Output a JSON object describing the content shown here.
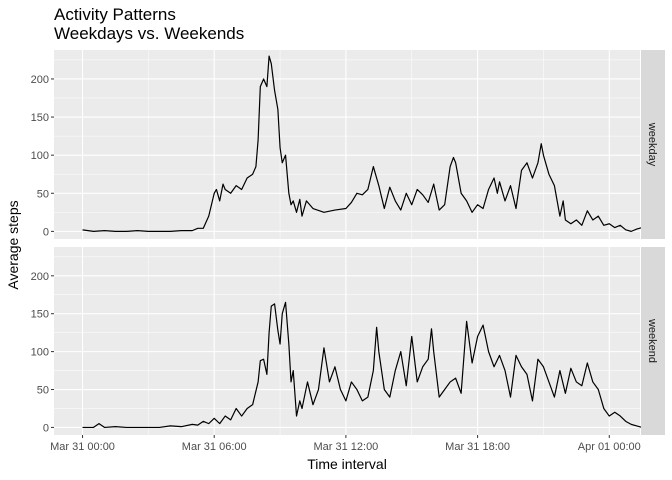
{
  "chart_data": {
    "type": "line",
    "title": "Activity Patterns",
    "subtitle": "Weekdays vs. Weekends",
    "xlabel": "Time interval",
    "ylabel": "Average steps",
    "ylim": [
      -10,
      238
    ],
    "y_ticks": [
      0,
      50,
      100,
      150,
      200
    ],
    "x_ticks": [
      "Mar 31 00:00",
      "Mar 31 06:00",
      "Mar 31 12:00",
      "Mar 31 18:00",
      "Apr 01 00:00"
    ],
    "x_tick_hours": [
      0,
      6,
      12,
      18,
      24
    ],
    "xlim_hours": [
      -1.3,
      25.4
    ],
    "x_unit": "hours since Mar 31 00:00",
    "grid": true,
    "facet": "rows",
    "panels": [
      {
        "name": "weekday",
        "points": [
          [
            0,
            2
          ],
          [
            0.5,
            0
          ],
          [
            1,
            1
          ],
          [
            1.5,
            0
          ],
          [
            2,
            0
          ],
          [
            2.5,
            1
          ],
          [
            3,
            0
          ],
          [
            3.5,
            0
          ],
          [
            4,
            0
          ],
          [
            4.5,
            1
          ],
          [
            5,
            1
          ],
          [
            5.25,
            4
          ],
          [
            5.5,
            4
          ],
          [
            5.75,
            20
          ],
          [
            6,
            50
          ],
          [
            6.1,
            55
          ],
          [
            6.25,
            40
          ],
          [
            6.4,
            62
          ],
          [
            6.5,
            55
          ],
          [
            6.75,
            50
          ],
          [
            7,
            60
          ],
          [
            7.25,
            55
          ],
          [
            7.5,
            70
          ],
          [
            7.75,
            75
          ],
          [
            7.9,
            85
          ],
          [
            8.0,
            120
          ],
          [
            8.1,
            190
          ],
          [
            8.25,
            200
          ],
          [
            8.4,
            190
          ],
          [
            8.5,
            230
          ],
          [
            8.6,
            220
          ],
          [
            8.75,
            185
          ],
          [
            8.9,
            160
          ],
          [
            9.0,
            110
          ],
          [
            9.1,
            90
          ],
          [
            9.25,
            100
          ],
          [
            9.4,
            50
          ],
          [
            9.5,
            35
          ],
          [
            9.6,
            40
          ],
          [
            9.75,
            25
          ],
          [
            9.9,
            42
          ],
          [
            10.0,
            20
          ],
          [
            10.2,
            40
          ],
          [
            10.5,
            30
          ],
          [
            11.0,
            25
          ],
          [
            11.5,
            28
          ],
          [
            12.0,
            30
          ],
          [
            12.25,
            38
          ],
          [
            12.5,
            50
          ],
          [
            12.75,
            48
          ],
          [
            13.0,
            55
          ],
          [
            13.25,
            85
          ],
          [
            13.4,
            70
          ],
          [
            13.5,
            60
          ],
          [
            13.75,
            30
          ],
          [
            14.0,
            58
          ],
          [
            14.25,
            40
          ],
          [
            14.5,
            28
          ],
          [
            14.75,
            50
          ],
          [
            15.0,
            35
          ],
          [
            15.25,
            55
          ],
          [
            15.5,
            48
          ],
          [
            15.75,
            38
          ],
          [
            16.0,
            62
          ],
          [
            16.25,
            28
          ],
          [
            16.5,
            35
          ],
          [
            16.75,
            85
          ],
          [
            16.9,
            97
          ],
          [
            17.0,
            90
          ],
          [
            17.25,
            50
          ],
          [
            17.5,
            40
          ],
          [
            17.75,
            25
          ],
          [
            18.0,
            35
          ],
          [
            18.25,
            30
          ],
          [
            18.5,
            55
          ],
          [
            18.75,
            70
          ],
          [
            18.9,
            50
          ],
          [
            19.0,
            65
          ],
          [
            19.25,
            40
          ],
          [
            19.5,
            60
          ],
          [
            19.75,
            30
          ],
          [
            20.0,
            80
          ],
          [
            20.25,
            90
          ],
          [
            20.5,
            70
          ],
          [
            20.75,
            90
          ],
          [
            20.9,
            115
          ],
          [
            21.0,
            100
          ],
          [
            21.25,
            75
          ],
          [
            21.5,
            60
          ],
          [
            21.75,
            20
          ],
          [
            21.9,
            40
          ],
          [
            22.0,
            15
          ],
          [
            22.25,
            10
          ],
          [
            22.5,
            15
          ],
          [
            22.75,
            8
          ],
          [
            23.0,
            27
          ],
          [
            23.25,
            15
          ],
          [
            23.5,
            20
          ],
          [
            23.75,
            8
          ],
          [
            24.0,
            10
          ],
          [
            24.25,
            5
          ],
          [
            24.5,
            8
          ],
          [
            24.75,
            2
          ],
          [
            25.0,
            0
          ],
          [
            25.25,
            3
          ],
          [
            25.5,
            5
          ],
          [
            25.75,
            2
          ],
          [
            26.0,
            0
          ],
          [
            26.25,
            0
          ]
        ]
      },
      {
        "name": "weekend",
        "points": [
          [
            0,
            0
          ],
          [
            0.5,
            0
          ],
          [
            0.75,
            5
          ],
          [
            1,
            0
          ],
          [
            1.5,
            1
          ],
          [
            2,
            0
          ],
          [
            2.5,
            0
          ],
          [
            3,
            0
          ],
          [
            3.5,
            0
          ],
          [
            4,
            2
          ],
          [
            4.5,
            1
          ],
          [
            5,
            4
          ],
          [
            5.25,
            3
          ],
          [
            5.5,
            8
          ],
          [
            5.75,
            5
          ],
          [
            6.0,
            12
          ],
          [
            6.25,
            5
          ],
          [
            6.5,
            15
          ],
          [
            6.75,
            10
          ],
          [
            7.0,
            25
          ],
          [
            7.25,
            15
          ],
          [
            7.5,
            25
          ],
          [
            7.75,
            30
          ],
          [
            8.0,
            60
          ],
          [
            8.1,
            88
          ],
          [
            8.25,
            90
          ],
          [
            8.4,
            70
          ],
          [
            8.5,
            125
          ],
          [
            8.6,
            160
          ],
          [
            8.75,
            163
          ],
          [
            8.9,
            128
          ],
          [
            9.0,
            110
          ],
          [
            9.1,
            150
          ],
          [
            9.25,
            165
          ],
          [
            9.4,
            110
          ],
          [
            9.5,
            60
          ],
          [
            9.6,
            75
          ],
          [
            9.75,
            15
          ],
          [
            9.9,
            35
          ],
          [
            10.0,
            25
          ],
          [
            10.25,
            60
          ],
          [
            10.5,
            30
          ],
          [
            10.75,
            50
          ],
          [
            11.0,
            105
          ],
          [
            11.25,
            60
          ],
          [
            11.5,
            80
          ],
          [
            11.75,
            50
          ],
          [
            12.0,
            35
          ],
          [
            12.25,
            60
          ],
          [
            12.5,
            50
          ],
          [
            12.75,
            35
          ],
          [
            13.0,
            40
          ],
          [
            13.25,
            75
          ],
          [
            13.4,
            132
          ],
          [
            13.5,
            100
          ],
          [
            13.75,
            50
          ],
          [
            14.0,
            40
          ],
          [
            14.25,
            75
          ],
          [
            14.5,
            100
          ],
          [
            14.75,
            55
          ],
          [
            15.0,
            120
          ],
          [
            15.25,
            60
          ],
          [
            15.5,
            80
          ],
          [
            15.75,
            90
          ],
          [
            15.9,
            130
          ],
          [
            16.0,
            100
          ],
          [
            16.25,
            40
          ],
          [
            16.5,
            50
          ],
          [
            16.75,
            60
          ],
          [
            17.0,
            65
          ],
          [
            17.25,
            45
          ],
          [
            17.5,
            140
          ],
          [
            17.75,
            85
          ],
          [
            18.0,
            120
          ],
          [
            18.25,
            135
          ],
          [
            18.5,
            100
          ],
          [
            18.75,
            80
          ],
          [
            19.0,
            95
          ],
          [
            19.25,
            75
          ],
          [
            19.5,
            40
          ],
          [
            19.75,
            95
          ],
          [
            20.0,
            80
          ],
          [
            20.25,
            70
          ],
          [
            20.5,
            35
          ],
          [
            20.75,
            90
          ],
          [
            21.0,
            80
          ],
          [
            21.25,
            60
          ],
          [
            21.5,
            40
          ],
          [
            21.75,
            75
          ],
          [
            22.0,
            45
          ],
          [
            22.25,
            78
          ],
          [
            22.5,
            60
          ],
          [
            22.75,
            55
          ],
          [
            23.0,
            85
          ],
          [
            23.25,
            60
          ],
          [
            23.5,
            50
          ],
          [
            23.75,
            25
          ],
          [
            24.0,
            15
          ],
          [
            24.25,
            20
          ],
          [
            24.5,
            15
          ],
          [
            24.75,
            8
          ],
          [
            25.0,
            4
          ],
          [
            25.25,
            2
          ],
          [
            25.5,
            0
          ],
          [
            25.75,
            2
          ],
          [
            26.0,
            0
          ],
          [
            26.25,
            0
          ]
        ]
      }
    ]
  },
  "colors": {
    "panel_bg": "#ebebeb",
    "grid_major": "#ffffff",
    "strip_bg": "#d9d9d9",
    "line": "#000000",
    "tick": "#333333"
  }
}
